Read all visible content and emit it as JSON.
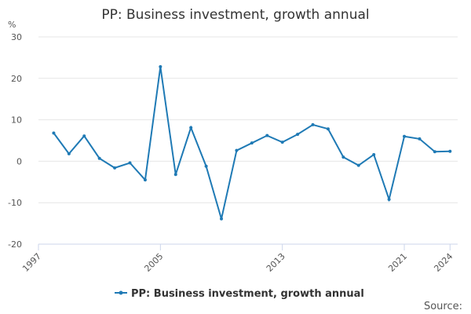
{
  "chart_data": {
    "type": "line",
    "title": "PP: Business investment, growth annual",
    "y_unit": "%",
    "source": "Source:",
    "x": [
      1998,
      1999,
      2000,
      2001,
      2002,
      2003,
      2004,
      2005,
      2006,
      2007,
      2008,
      2009,
      2010,
      2011,
      2012,
      2013,
      2014,
      2015,
      2016,
      2017,
      2018,
      2019,
      2020,
      2021,
      2022,
      2023,
      2024
    ],
    "series": [
      {
        "name": "PP: Business investment, growth annual",
        "color": "#1f7ab5",
        "values": [
          6.8,
          1.8,
          6.1,
          0.7,
          -1.6,
          -0.4,
          -4.5,
          22.8,
          -3.2,
          8.1,
          -1.2,
          -13.9,
          2.6,
          4.4,
          6.2,
          4.6,
          6.5,
          8.8,
          7.8,
          1.0,
          -1.0,
          1.6,
          -9.2,
          6.0,
          5.4,
          2.3,
          2.4
        ]
      }
    ],
    "xlim": [
      1997,
      2024.5
    ],
    "xticks": [
      1997,
      2005,
      2013,
      2021,
      2024
    ],
    "ylim": [
      -20,
      30
    ],
    "yticks": [
      -20,
      -10,
      0,
      10,
      20,
      30
    ],
    "grid": true
  }
}
